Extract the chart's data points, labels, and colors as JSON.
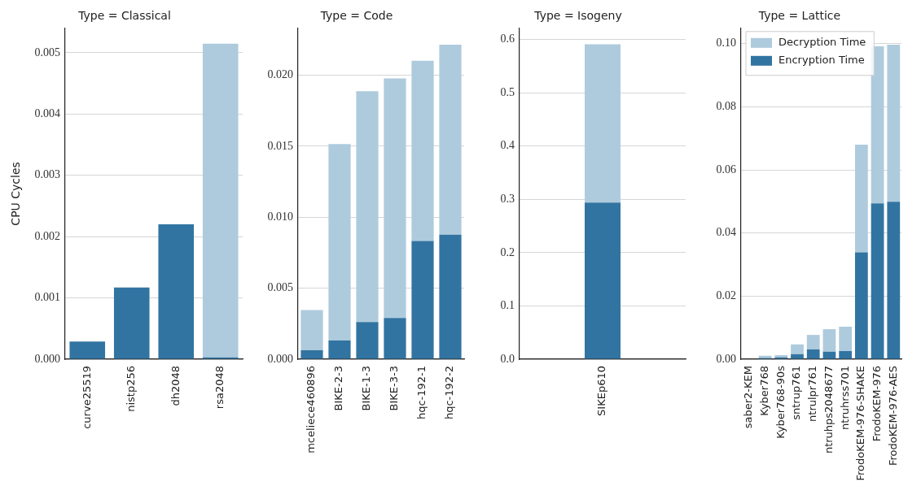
{
  "chart_data": [
    {
      "type": "bar",
      "title": "Type = Classical",
      "ylabel": "CPU Cycles",
      "stacked": true,
      "grid": "y",
      "categories": [
        "curve25519",
        "nistp256",
        "dh2048",
        "rsa2048"
      ],
      "series": [
        {
          "color": "#3274a1",
          "values": [
            0.00029,
            0.00117,
            0.0022,
            3e-05
          ]
        },
        {
          "color": "#aecbdd",
          "values": [
            null,
            null,
            null,
            0.00512
          ]
        }
      ],
      "ylim": [
        0,
        0.0054
      ],
      "yticks": [
        {
          "value": 0,
          "label": "0.000"
        },
        {
          "value": 0.001,
          "label": "0.001"
        },
        {
          "value": 0.002,
          "label": "0.002"
        },
        {
          "value": 0.003,
          "label": "0.003"
        },
        {
          "value": 0.004,
          "label": "0.004"
        },
        {
          "value": 0.005,
          "label": "0.005"
        }
      ]
    },
    {
      "type": "bar",
      "title": "Type = Code",
      "stacked": true,
      "grid": "y",
      "categories": [
        "mceliece460896",
        "BIKE-2-3",
        "BIKE-1-3",
        "BIKE-3-3",
        "hqc-192-1",
        "hqc-192-2"
      ],
      "series": [
        {
          "color": "#3274a1",
          "values": [
            0.00064,
            0.00132,
            0.00262,
            0.0029,
            0.00832,
            0.00877
          ]
        },
        {
          "color": "#aecbdd",
          "values": [
            0.00282,
            0.01383,
            0.01625,
            0.01687,
            0.0127,
            0.01337
          ]
        }
      ],
      "ylim": [
        0,
        0.0233
      ],
      "yticks": [
        {
          "value": 0,
          "label": "0.000"
        },
        {
          "value": 0.005,
          "label": "0.005"
        },
        {
          "value": 0.01,
          "label": "0.010"
        },
        {
          "value": 0.015,
          "label": "0.015"
        },
        {
          "value": 0.02,
          "label": "0.020"
        }
      ]
    },
    {
      "type": "bar",
      "title": "Type = Isogeny",
      "stacked": true,
      "grid": "y",
      "categories": [
        "SIKEp610"
      ],
      "series": [
        {
          "color": "#3274a1",
          "values": [
            0.294
          ]
        },
        {
          "color": "#aecbdd",
          "values": [
            0.297
          ]
        }
      ],
      "ylim": [
        0,
        0.621
      ],
      "yticks": [
        {
          "value": 0,
          "label": "0.0"
        },
        0.1,
        0.2,
        0.3,
        0.4,
        0.5,
        0.6
      ]
    },
    {
      "type": "bar",
      "title": "Type = Lattice",
      "stacked": true,
      "grid": "y",
      "legend": "top left",
      "categories": [
        "saber2-KEM",
        "Kyber768",
        "Kyber768-90s",
        "sntrup761",
        "ntrulpr761",
        "ntruhps2048677",
        "ntruhrss701",
        "FrodoKEM-976-SHAKE",
        "FrodoKEM-976",
        "FrodoKEM-976-AES"
      ],
      "series": [
        {
          "name": "Encryption Time",
          "color": "#3274a1",
          "values": [
            0,
            0.0004,
            0.0006,
            0.0016,
            0.0031,
            0.0024,
            0.0026,
            0.0339,
            0.0494,
            0.0499
          ]
        },
        {
          "name": "Decryption Time",
          "color": "#aecbdd",
          "values": [
            null,
            0.0007,
            0.0007,
            0.0031,
            0.0046,
            0.0071,
            0.0077,
            0.0341,
            0.0498,
            0.0498
          ]
        }
      ],
      "ylim": [
        0,
        0.1049
      ],
      "yticks": [
        {
          "value": 0,
          "label": "0.00"
        },
        {
          "value": 0.02,
          "label": "0.02"
        },
        {
          "value": 0.04,
          "label": "0.04"
        },
        {
          "value": 0.06,
          "label": "0.06"
        },
        {
          "value": 0.08,
          "label": "0.08"
        },
        {
          "value": 0.1,
          "label": "0.10"
        }
      ]
    }
  ]
}
